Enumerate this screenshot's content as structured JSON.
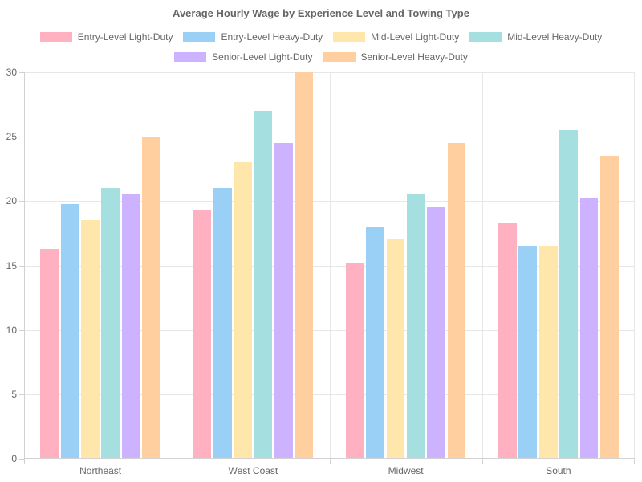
{
  "chart_data": {
    "type": "bar",
    "title": "Average Hourly Wage by Experience Level and Towing Type",
    "categories": [
      "Northeast",
      "West Coast",
      "Midwest",
      "South"
    ],
    "series": [
      {
        "name": "Entry-Level Light-Duty",
        "color": "#FFB1C1",
        "values": [
          16.25,
          19.25,
          15.25,
          18.25
        ]
      },
      {
        "name": "Entry-Level Heavy-Duty",
        "color": "#9AD0F5",
        "values": [
          19.75,
          21.0,
          18.0,
          16.5
        ]
      },
      {
        "name": "Mid-Level Light-Duty",
        "color": "#FFE6AA",
        "values": [
          18.5,
          23.0,
          17.0,
          16.5
        ]
      },
      {
        "name": "Mid-Level Heavy-Duty",
        "color": "#A5DFDF",
        "values": [
          21.0,
          27.0,
          20.5,
          25.5
        ]
      },
      {
        "name": "Senior-Level Light-Duty",
        "color": "#CCB2FF",
        "values": [
          20.5,
          24.5,
          19.5,
          20.25
        ]
      },
      {
        "name": "Senior-Level Heavy-Duty",
        "color": "#FFCF9F",
        "values": [
          25.0,
          30.0,
          24.5,
          23.5
        ]
      }
    ],
    "xlabel": "",
    "ylabel": "",
    "ylim": [
      0,
      30
    ],
    "yticks": [
      0,
      5,
      10,
      15,
      20,
      25,
      30
    ],
    "grid": true,
    "legend_position": "top",
    "legend_rows": [
      4,
      2
    ],
    "text_color": "#666666",
    "grid_color": "#e7e7e7",
    "axis_color": "#d2d2d2"
  }
}
